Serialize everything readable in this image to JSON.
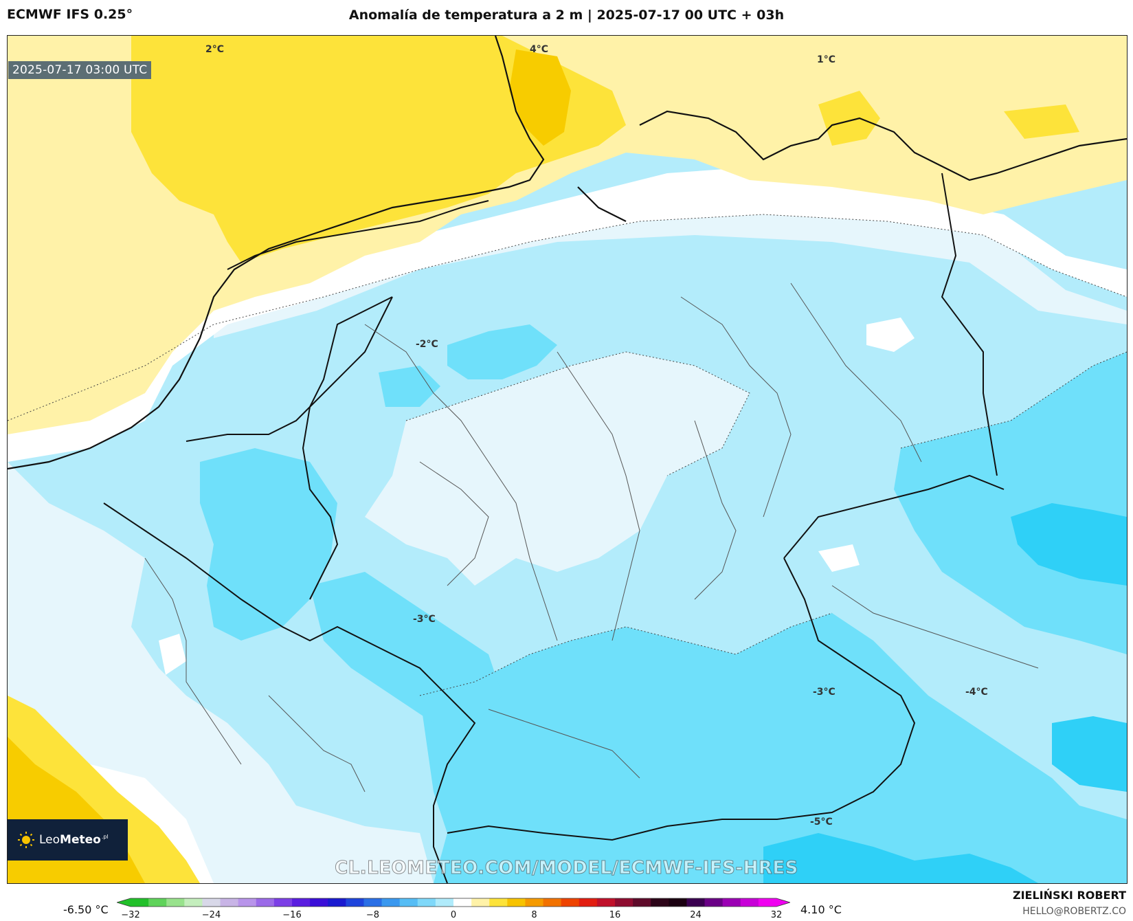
{
  "header": {
    "model_title": "ECMWF IFS 0.25°",
    "main_title": "Anomalía de temperatura a 2 m | 2025-07-17 00 UTC + 03h"
  },
  "map": {
    "valid_time": "2025-07-17 03:00 UTC",
    "contour_labels": [
      "2°C",
      "4°C",
      "1°C",
      "-2°C",
      "-3°C",
      "-3°C",
      "-4°C",
      "-5°C"
    ],
    "watermark": "CL.LEOMETEO.COM/MODEL/ECMWF-IFS-HRES",
    "colors": {
      "warm_light": "#fff2a8",
      "warm_mid": "#fde33a",
      "warm_strong": "#f7cc00",
      "neutral": "#ffffff",
      "cool_faint": "#e6f6fc",
      "cool_light": "#b3ecfb",
      "cool_mid": "#6fe0fa",
      "cool_strong": "#2fd0f7"
    }
  },
  "logo": {
    "brand_regular": "Leo",
    "brand_bold": "Meteo",
    "suffix": ".pl"
  },
  "colorbar": {
    "min_label": "-6.50 °C",
    "max_label": "4.10 °C",
    "ticks": [
      "−32",
      "−24",
      "−16",
      "−8",
      "0",
      "8",
      "16",
      "24",
      "32"
    ],
    "colors": [
      "#22c02a",
      "#5fd35a",
      "#98e28c",
      "#c4eebd",
      "#d8d8e8",
      "#c8b4e6",
      "#b894ea",
      "#9b6ae8",
      "#7c3fe6",
      "#5a1ee0",
      "#3a0ed8",
      "#1a1ad0",
      "#1e44dc",
      "#2a6fe6",
      "#3a98ef",
      "#56bdf5",
      "#7fd8f9",
      "#b0ebfb",
      "#ffffff",
      "#fff2a8",
      "#fde33a",
      "#f7c300",
      "#f59a00",
      "#f27200",
      "#ee4300",
      "#e21d10",
      "#c0102a",
      "#8e0c30",
      "#5e0a2a",
      "#2c0418",
      "#1a0010",
      "#3a0050",
      "#6a0086",
      "#9b00b4",
      "#c800d8",
      "#f000f0"
    ]
  },
  "credit": {
    "name": "ZIELIŃSKI ROBERT",
    "email": "HELLO@ROBERTZ.CO"
  }
}
